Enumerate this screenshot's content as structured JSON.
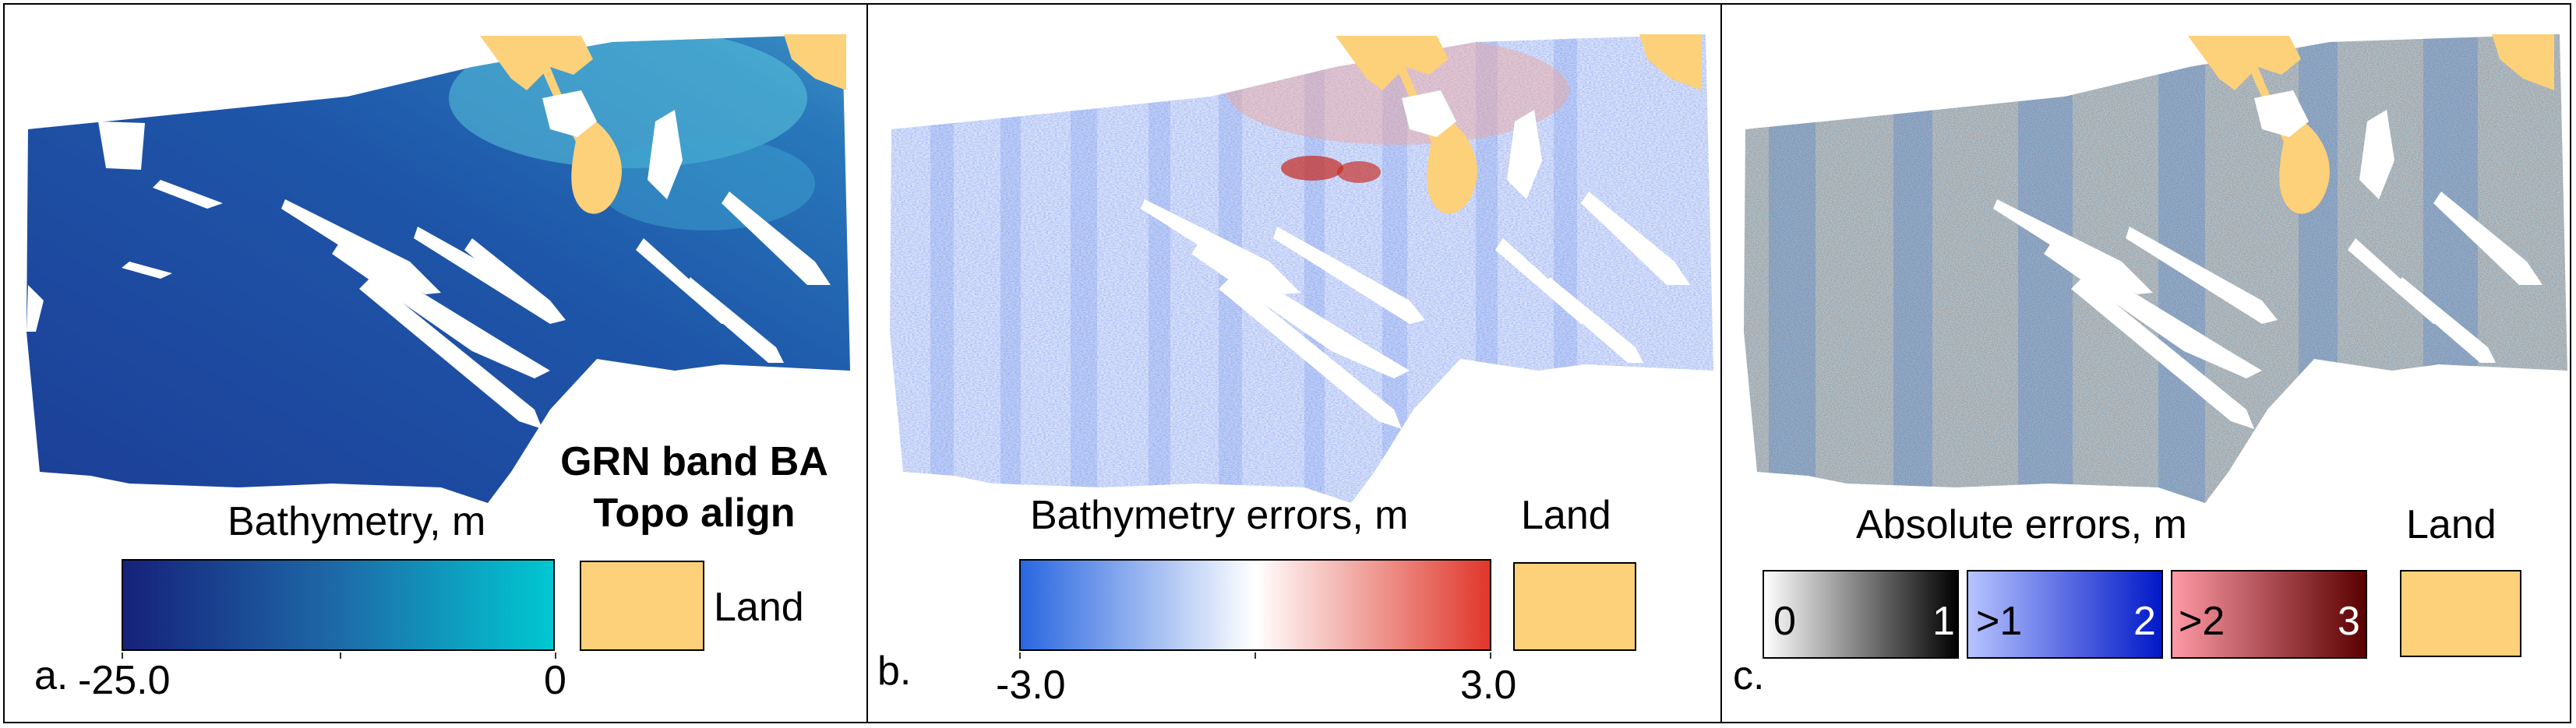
{
  "colors": {
    "land": "#fdd07a",
    "bathy_deep": "#16217a",
    "bathy_shallow": "#00c8d2",
    "err_neg": "#2966e0",
    "err_mid": "#ffffff",
    "err_pos": "#e0362a",
    "abs_black": "#000000",
    "abs_blue": "#0018c8",
    "abs_red": "#5a0000"
  },
  "panel_a": {
    "letter": "a.",
    "title_line1": "GRN band BA",
    "title_line2": "Topo align",
    "colorbar": {
      "label": "Bathymetry, m",
      "min": "-25.0",
      "max": "0"
    },
    "land_label": "Land"
  },
  "panel_b": {
    "letter": "b.",
    "colorbar": {
      "label": "Bathymetry errors, m",
      "min": "-3.0",
      "max": "3.0"
    },
    "land_label": "Land"
  },
  "panel_c": {
    "letter": "c.",
    "colorbar_label": "Absolute errors, m",
    "classes": [
      {
        "left": "0",
        "right": "1"
      },
      {
        "left": ">1",
        "right": "2"
      },
      {
        "left": ">2",
        "right": "3"
      }
    ],
    "land_label": "Land"
  }
}
